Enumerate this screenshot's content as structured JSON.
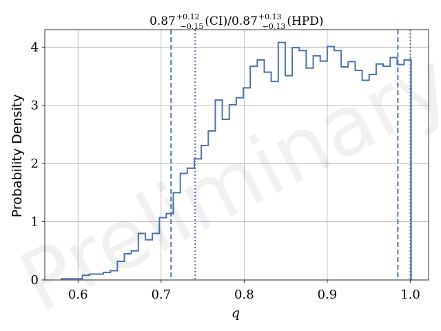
{
  "chart_data": {
    "type": "histogram",
    "title": {
      "median_ci": "0.87",
      "ci_plus": "+0.12",
      "ci_minus": "−0.15",
      "ci_label": "(CI)",
      "separator": "/",
      "median_hpd": "0.87",
      "hpd_plus": "+0.13",
      "hpd_minus": "−0.13",
      "hpd_label": "(HPD)"
    },
    "xlabel": "q",
    "ylabel": "Probability Density",
    "watermark": "Preliminary",
    "xlim": [
      0.56,
      1.022
    ],
    "ylim": [
      0,
      4.3
    ],
    "xticks": [
      0.6,
      0.7,
      0.8,
      0.9,
      1.0
    ],
    "xtick_labels": [
      "0.6",
      "0.7",
      "0.8",
      "0.9",
      "1.0"
    ],
    "yticks": [
      0,
      1,
      2,
      3,
      4
    ],
    "ytick_labels": [
      "0",
      "1",
      "2",
      "3",
      "4"
    ],
    "grid": true,
    "line_color": "#4c72b0",
    "bins": {
      "start": 0.58,
      "width": 0.00842,
      "heights": [
        0.02,
        0.02,
        0.02,
        0.08,
        0.1,
        0.1,
        0.13,
        0.16,
        0.32,
        0.45,
        0.5,
        0.8,
        0.69,
        0.8,
        1.07,
        1.14,
        1.5,
        1.83,
        1.92,
        2.08,
        2.31,
        2.56,
        3.09,
        2.76,
        3.01,
        3.13,
        3.3,
        3.67,
        3.78,
        3.57,
        3.41,
        4.08,
        3.51,
        3.99,
        3.94,
        3.64,
        3.85,
        3.76,
        4.01,
        3.94,
        3.66,
        3.75,
        3.6,
        3.43,
        3.53,
        3.71,
        3.67,
        3.82,
        3.7,
        3.78
      ]
    },
    "intervals": {
      "ci": {
        "style": "dashed",
        "lower": 0.712,
        "upper": 0.985
      },
      "hpd": {
        "style": "dotted",
        "lower": 0.741,
        "upper": 1.0
      }
    }
  }
}
